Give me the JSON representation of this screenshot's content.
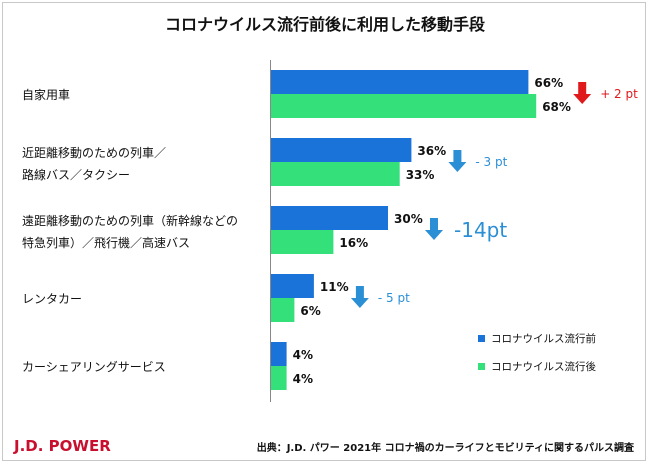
{
  "chart_data": {
    "type": "bar",
    "orientation": "horizontal",
    "title": "コロナウイルス流行前後に利用した移動手段",
    "categories": [
      [
        "自家用車"
      ],
      [
        "近距離移動のための列車／",
        "路線バス／タクシー"
      ],
      [
        "遠距離移動のための列車（新幹線などの",
        "特急列車）／飛行機／高速バス"
      ],
      [
        "レンタカー"
      ],
      [
        "カーシェアリングサービス"
      ]
    ],
    "series": [
      {
        "name": "コロナウイルス流行前",
        "values": [
          66,
          36,
          30,
          11,
          4
        ],
        "labels": [
          "66%",
          "36%",
          "30%",
          "11%",
          "4%"
        ],
        "color": "#1a73d9"
      },
      {
        "name": "コロナウイルス流行後",
        "values": [
          68,
          33,
          16,
          6,
          4
        ],
        "labels": [
          "68%",
          "33%",
          "16%",
          "6%",
          "4%"
        ],
        "color": "#33e07a"
      }
    ],
    "changes": [
      {
        "text": "+ 2 pt",
        "direction": "up",
        "color": "#e0191b"
      },
      {
        "text": "- 3 pt",
        "direction": "down",
        "color": "#2b8fd6"
      },
      {
        "text": "-14pt",
        "direction": "down",
        "color": "#2b8fd6"
      },
      {
        "text": "- 5 pt",
        "direction": "down",
        "color": "#2b8fd6"
      },
      null
    ],
    "legend_position": "right",
    "xlim": [
      0,
      100
    ],
    "grid": false
  },
  "footer": {
    "logo": "J.D. POWER",
    "logo_color": "#c8102e",
    "source": "出典：J.D. パワー 2021年 コロナ禍のカーライフとモビリティに関するパルス調査"
  }
}
